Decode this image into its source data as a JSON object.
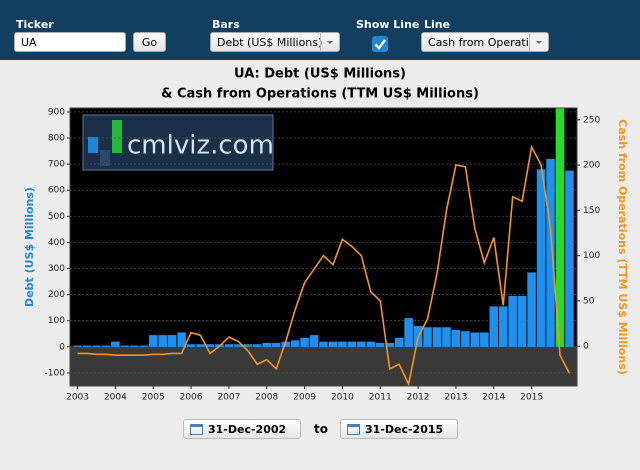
{
  "controls": {
    "ticker_label": "Ticker",
    "ticker_value": "UA",
    "go_button": "Go",
    "bars_label": "Bars",
    "bars_value": "Debt (US$ Millions)",
    "show_line_label": "Show Line",
    "show_line": true,
    "line_label": "Line",
    "line_value": "Cash from Operatic"
  },
  "chart_data": {
    "type": "bar-line",
    "title": "UA: Debt (US$ Millions)",
    "subtitle": "& Cash from Operations (TTM US$ Millions)",
    "watermark": "cmlviz.com",
    "ylabel": "Debt (US$ Millions)",
    "y2label": "Cash from Operations (TTM US$ Millions)",
    "x": [
      2003,
      2003.25,
      2003.5,
      2003.75,
      2004,
      2004.25,
      2004.5,
      2004.75,
      2005,
      2005.25,
      2005.5,
      2005.75,
      2006,
      2006.25,
      2006.5,
      2006.75,
      2007,
      2007.25,
      2007.5,
      2007.75,
      2008,
      2008.25,
      2008.5,
      2008.75,
      2009,
      2009.25,
      2009.5,
      2009.75,
      2010,
      2010.25,
      2010.5,
      2010.75,
      2011,
      2011.25,
      2011.5,
      2011.75,
      2012,
      2012.25,
      2012.5,
      2012.75,
      2013,
      2013.25,
      2013.5,
      2013.75,
      2014,
      2014.25,
      2014.5,
      2014.75,
      2015,
      2015.25,
      2015.5,
      2015.75,
      2016
    ],
    "series": [
      {
        "type": "bar",
        "color": "#1e90ee",
        "values": [
          5,
          5,
          5,
          5,
          20,
          5,
          5,
          5,
          45,
          45,
          45,
          55,
          10,
          10,
          10,
          10,
          10,
          10,
          10,
          10,
          15,
          15,
          20,
          25,
          35,
          45,
          20,
          20,
          20,
          20,
          20,
          20,
          15,
          15,
          35,
          110,
          80,
          75,
          75,
          75,
          65,
          60,
          55,
          55,
          155,
          155,
          195,
          195,
          285,
          680,
          720,
          915,
          675
        ]
      },
      {
        "type": "line",
        "axis": "y2",
        "color": "#f7941d",
        "values": [
          -8,
          -8,
          -9,
          -9,
          -10,
          -10,
          -10,
          -10,
          -9,
          -9,
          -8,
          -8,
          15,
          12,
          -8,
          0,
          10,
          5,
          -5,
          -20,
          -15,
          -25,
          5,
          40,
          70,
          85,
          100,
          90,
          118,
          110,
          100,
          60,
          50,
          -25,
          -20,
          -42,
          10,
          30,
          80,
          150,
          200,
          198,
          130,
          92,
          120,
          45,
          165,
          160,
          220,
          200,
          130,
          -10,
          -30
        ]
      }
    ],
    "highlight_x": 2015.75,
    "highlight_color": "#22e02a",
    "xlim": [
      2002.8,
      2016.2
    ],
    "xticks": [
      2003,
      2004,
      2005,
      2006,
      2007,
      2008,
      2009,
      2010,
      2011,
      2012,
      2013,
      2014,
      2015
    ],
    "ylim": [
      -150,
      915
    ],
    "yticks": [
      -100,
      0,
      100,
      200,
      300,
      400,
      500,
      600,
      700,
      800,
      900
    ],
    "y2lim": [
      -44,
      263
    ],
    "y2ticks": [
      0,
      50,
      100,
      150,
      200,
      250
    ],
    "grid": true
  },
  "date_range": {
    "from": "31-Dec-2002",
    "separator": "to",
    "to": "31-Dec-2015"
  }
}
